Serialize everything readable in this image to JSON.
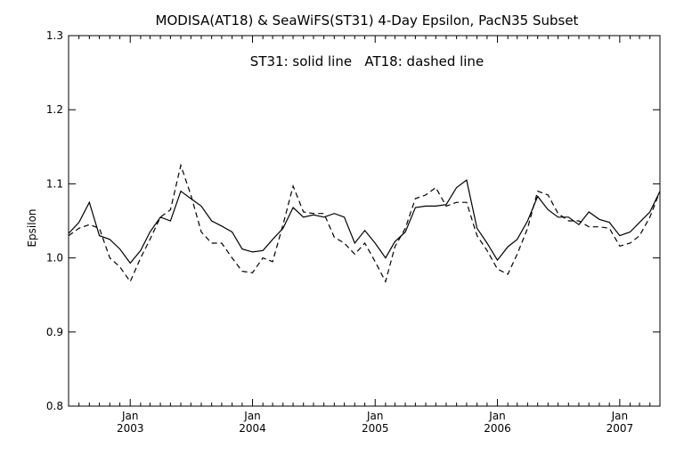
{
  "chart_data": {
    "type": "line",
    "title": "MODISA(AT18) & SeaWiFS(ST31) 4-Day Epsilon, PacN35 Subset",
    "legend_text": "ST31: solid line   AT18: dashed line",
    "ylabel": "Epsilon",
    "xlabel": "",
    "ylim": [
      0.8,
      1.3
    ],
    "xlim": [
      "2002-07-01",
      "2007-05-01"
    ],
    "yticks": [
      "0.8",
      "0.9",
      "1.0",
      "1.1",
      "1.2",
      "1.3"
    ],
    "xticks": [
      {
        "date": "2003-01-01",
        "month": "Jan",
        "year": "2003"
      },
      {
        "date": "2004-01-01",
        "month": "Jan",
        "year": "2004"
      },
      {
        "date": "2005-01-01",
        "month": "Jan",
        "year": "2005"
      },
      {
        "date": "2006-01-01",
        "month": "Jan",
        "year": "2006"
      },
      {
        "date": "2007-01-01",
        "month": "Jan",
        "year": "2007"
      }
    ],
    "grid": false,
    "series": [
      {
        "name": "ST31",
        "style": "solid",
        "color": "#000000",
        "x": [
          "2002-07-01",
          "2002-08-01",
          "2002-09-01",
          "2002-10-01",
          "2002-11-01",
          "2002-12-01",
          "2003-01-01",
          "2003-02-01",
          "2003-03-01",
          "2003-04-01",
          "2003-05-01",
          "2003-06-01",
          "2003-07-01",
          "2003-08-01",
          "2003-09-01",
          "2003-10-01",
          "2003-11-01",
          "2003-12-01",
          "2004-01-01",
          "2004-02-01",
          "2004-03-01",
          "2004-04-01",
          "2004-05-01",
          "2004-06-01",
          "2004-07-01",
          "2004-08-01",
          "2004-09-01",
          "2004-10-01",
          "2004-11-01",
          "2004-12-01",
          "2005-01-01",
          "2005-02-01",
          "2005-03-01",
          "2005-04-01",
          "2005-05-01",
          "2005-06-01",
          "2005-07-01",
          "2005-08-01",
          "2005-09-01",
          "2005-10-01",
          "2005-11-01",
          "2005-12-01",
          "2006-01-01",
          "2006-02-01",
          "2006-03-01",
          "2006-04-01",
          "2006-05-01",
          "2006-06-01",
          "2006-07-01",
          "2006-08-01",
          "2006-09-01",
          "2006-10-01",
          "2006-11-01",
          "2006-12-01",
          "2007-01-01",
          "2007-02-01",
          "2007-03-01",
          "2007-04-01",
          "2007-05-01"
        ],
        "values": [
          1.033,
          1.048,
          1.075,
          1.03,
          1.025,
          1.012,
          0.993,
          1.01,
          1.035,
          1.055,
          1.05,
          1.09,
          1.08,
          1.07,
          1.05,
          1.043,
          1.035,
          1.012,
          1.008,
          1.01,
          1.025,
          1.04,
          1.068,
          1.055,
          1.058,
          1.055,
          1.06,
          1.055,
          1.02,
          1.037,
          1.02,
          1.0,
          1.022,
          1.035,
          1.068,
          1.07,
          1.07,
          1.072,
          1.095,
          1.105,
          1.04,
          1.02,
          0.997,
          1.015,
          1.025,
          1.05,
          1.083,
          1.065,
          1.055,
          1.055,
          1.045,
          1.062,
          1.052,
          1.048,
          1.03,
          1.035,
          1.048,
          1.062,
          1.09
        ]
      },
      {
        "name": "AT18",
        "style": "dashed",
        "color": "#000000",
        "x": [
          "2002-07-01",
          "2002-08-01",
          "2002-09-01",
          "2002-10-01",
          "2002-11-01",
          "2002-12-01",
          "2003-01-01",
          "2003-02-01",
          "2003-03-01",
          "2003-04-01",
          "2003-05-01",
          "2003-06-01",
          "2003-07-01",
          "2003-08-01",
          "2003-09-01",
          "2003-10-01",
          "2003-11-01",
          "2003-12-01",
          "2004-01-01",
          "2004-02-01",
          "2004-03-01",
          "2004-04-01",
          "2004-05-01",
          "2004-06-01",
          "2004-07-01",
          "2004-08-01",
          "2004-09-01",
          "2004-10-01",
          "2004-11-01",
          "2004-12-01",
          "2005-01-01",
          "2005-02-01",
          "2005-03-01",
          "2005-04-01",
          "2005-05-01",
          "2005-06-01",
          "2005-07-01",
          "2005-08-01",
          "2005-09-01",
          "2005-10-01",
          "2005-11-01",
          "2005-12-01",
          "2006-01-01",
          "2006-02-01",
          "2006-03-01",
          "2006-04-01",
          "2006-05-01",
          "2006-06-01",
          "2006-07-01",
          "2006-08-01",
          "2006-09-01",
          "2006-10-01",
          "2006-11-01",
          "2006-12-01",
          "2007-01-01",
          "2007-02-01",
          "2007-03-01",
          "2007-04-01",
          "2007-05-01"
        ],
        "values": [
          1.03,
          1.04,
          1.045,
          1.04,
          1.0,
          0.988,
          0.968,
          1.0,
          1.025,
          1.055,
          1.065,
          1.125,
          1.085,
          1.035,
          1.02,
          1.02,
          1.0,
          0.982,
          0.98,
          1.0,
          0.995,
          1.045,
          1.097,
          1.062,
          1.06,
          1.06,
          1.028,
          1.02,
          1.005,
          1.02,
          0.995,
          0.968,
          1.015,
          1.04,
          1.08,
          1.085,
          1.095,
          1.07,
          1.075,
          1.075,
          1.03,
          1.01,
          0.985,
          0.978,
          1.005,
          1.04,
          1.09,
          1.085,
          1.06,
          1.05,
          1.05,
          1.042,
          1.042,
          1.04,
          1.016,
          1.02,
          1.03,
          1.055,
          1.09
        ]
      }
    ]
  }
}
